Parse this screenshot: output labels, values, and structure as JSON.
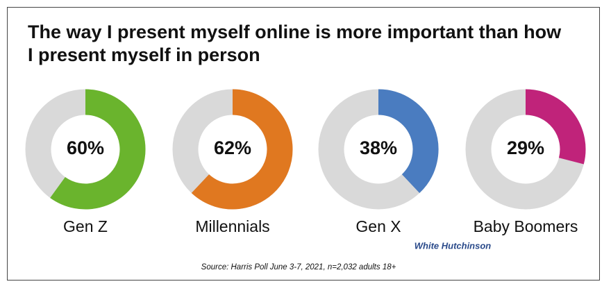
{
  "title": "The way I present myself online is more important than how I present myself in person",
  "chart_data": [
    {
      "type": "donut",
      "title": "Gen Z",
      "values": [
        60
      ],
      "value_labels": [
        "60%"
      ],
      "color": "#6ab42d"
    },
    {
      "type": "donut",
      "title": "Millennials",
      "values": [
        62
      ],
      "value_labels": [
        "62%"
      ],
      "color": "#e07820"
    },
    {
      "type": "donut",
      "title": "Gen X",
      "values": [
        38
      ],
      "value_labels": [
        "38%"
      ],
      "color": "#4a7cc0"
    },
    {
      "type": "donut",
      "title": "Baby Boomers",
      "values": [
        29
      ],
      "value_labels": [
        "29%"
      ],
      "color": "#c0237a"
    }
  ],
  "source": "Source: Harris Poll June 3-7, 2021, n=2,032 adults 18+",
  "logo": "White Hutchinson"
}
